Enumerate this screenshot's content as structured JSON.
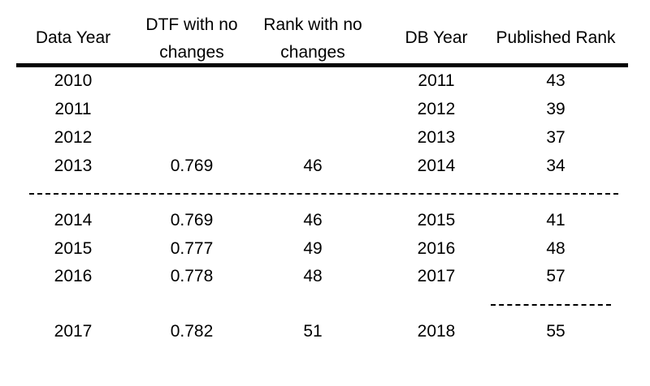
{
  "table": {
    "headers": [
      {
        "lines": [
          "Data Year"
        ]
      },
      {
        "lines": [
          "DTF with no",
          "changes"
        ]
      },
      {
        "lines": [
          "Rank with no",
          "changes"
        ]
      },
      {
        "lines": [
          "DB Year"
        ]
      },
      {
        "lines": [
          "Published Rank"
        ]
      }
    ],
    "groups": [
      [
        [
          "2010",
          "",
          "",
          "2011",
          "43"
        ],
        [
          "2011",
          "",
          "",
          "2012",
          "39"
        ],
        [
          "2012",
          "",
          "",
          "2013",
          "37"
        ],
        [
          "2013",
          "0.769",
          "46",
          "2014",
          "34"
        ]
      ],
      [
        [
          "2014",
          "0.769",
          "46",
          "2015",
          "41"
        ],
        [
          "2015",
          "0.777",
          "49",
          "2016",
          "48"
        ],
        [
          "2016",
          "0.778",
          "48",
          "2017",
          "57"
        ]
      ],
      [
        [
          "2017",
          "0.782",
          "51",
          "2018",
          "55"
        ]
      ]
    ]
  }
}
